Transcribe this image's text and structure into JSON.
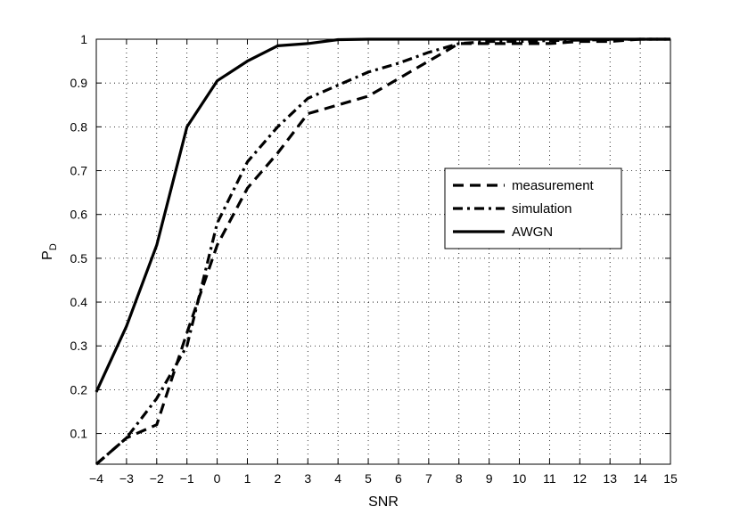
{
  "chart_data": {
    "type": "line",
    "xlabel": "SNR",
    "ylabel": "P",
    "ylabel_sub": "D",
    "xlim": [
      -4,
      15
    ],
    "ylim": [
      0.03,
      1
    ],
    "xticks": [
      -4,
      -3,
      -2,
      -1,
      0,
      1,
      2,
      3,
      4,
      5,
      6,
      7,
      8,
      9,
      10,
      11,
      12,
      13,
      14,
      15
    ],
    "yticks": [
      0.1,
      0.2,
      0.3,
      0.4,
      0.5,
      0.6,
      0.7,
      0.8,
      0.9,
      1
    ],
    "ytick_labels": [
      "0.1",
      "0.2",
      "0.3",
      "0.4",
      "0.5",
      "0.6",
      "0.7",
      "0.8",
      "0.9",
      "1"
    ],
    "grid": true,
    "legend_position": "right",
    "series": [
      {
        "name": "measurement",
        "style": "dashed",
        "x": [
          -4,
          -3,
          -2,
          -1,
          0,
          1,
          2,
          3,
          4,
          5,
          6,
          7,
          8,
          9,
          10,
          11,
          12,
          13,
          14,
          15
        ],
        "y": [
          0.03,
          0.09,
          0.12,
          0.33,
          0.53,
          0.66,
          0.74,
          0.83,
          0.85,
          0.87,
          0.91,
          0.95,
          0.99,
          0.99,
          0.99,
          0.99,
          0.995,
          0.995,
          1.0,
          1.0
        ]
      },
      {
        "name": "simulation",
        "style": "dashdot",
        "x": [
          -4,
          -3,
          -2,
          -1,
          0,
          1,
          2,
          3,
          4,
          5,
          6,
          7,
          8,
          9,
          10,
          11,
          12,
          13,
          14,
          15
        ],
        "y": [
          0.03,
          0.09,
          0.18,
          0.3,
          0.58,
          0.72,
          0.8,
          0.865,
          0.895,
          0.925,
          0.945,
          0.97,
          0.99,
          0.995,
          0.995,
          0.997,
          0.998,
          0.999,
          1.0,
          1.0
        ]
      },
      {
        "name": "AWGN",
        "style": "solid",
        "x": [
          -4,
          -3,
          -2,
          -1,
          0,
          1,
          2,
          3,
          4,
          5,
          6,
          7,
          8,
          9,
          10,
          11,
          12,
          13,
          14,
          15
        ],
        "y": [
          0.195,
          0.345,
          0.53,
          0.8,
          0.905,
          0.95,
          0.985,
          0.99,
          0.999,
          1.0,
          1.0,
          1.0,
          1.0,
          1.0,
          1.0,
          1.0,
          1.0,
          1.0,
          1.0,
          1.0
        ]
      }
    ]
  }
}
